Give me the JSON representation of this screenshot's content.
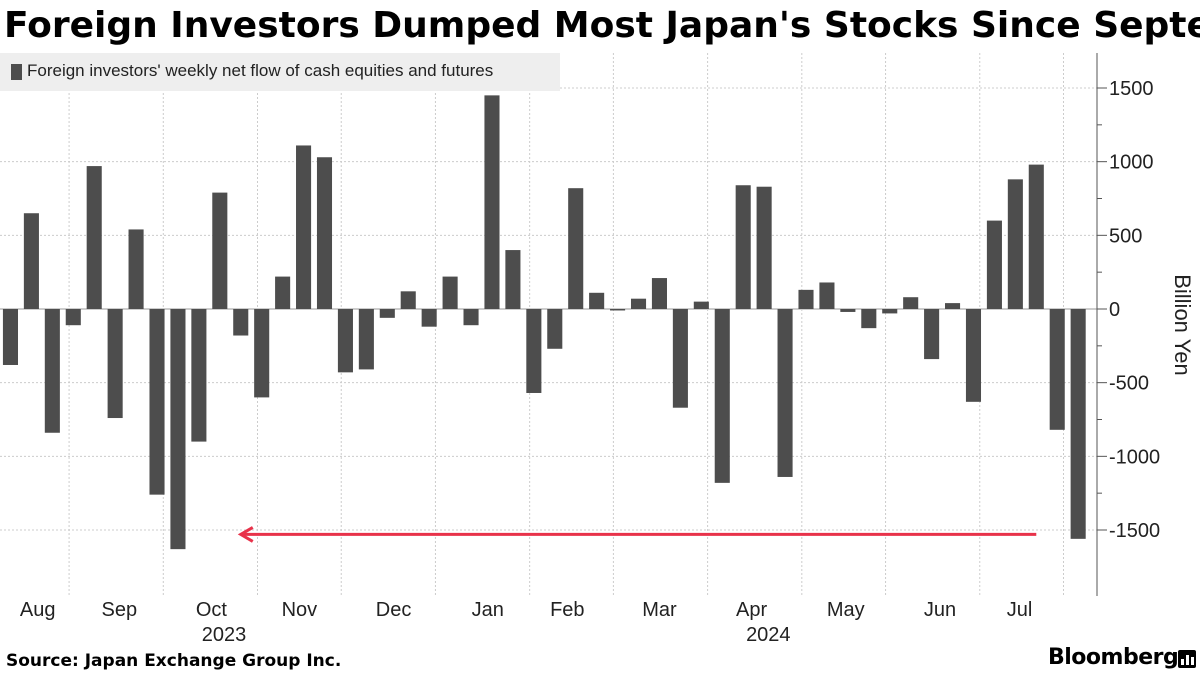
{
  "title": "Foreign Investors Dumped Most Japan's Stocks Since September",
  "source": "Source: Japan Exchange Group Inc.",
  "brand": "Bloomberg",
  "colors": {
    "bar": "#4d4d4d",
    "grid": "#cccccc",
    "arrow": "#e8324a",
    "legend_bg": "#eeeeee"
  },
  "chart_data": {
    "type": "bar",
    "title": "Foreign Investors Dumped Most Japan's Stocks Since September",
    "legend": "Foreign investors' weekly net flow of cash equities and futures",
    "ylabel": "Billion Yen",
    "ylim": [
      -1750,
      1750
    ],
    "yticks": [
      1500,
      1000,
      500,
      0,
      -500,
      -1000,
      -1500
    ],
    "ytick_labels": [
      "1500",
      "1000",
      "500",
      "0",
      "-500",
      "-1000",
      "-1500"
    ],
    "month_labels": [
      "Aug",
      "Sep",
      "Oct",
      "Nov",
      "Dec",
      "Jan",
      "Feb",
      "Mar",
      "Apr",
      "May",
      "Jun",
      "Jul"
    ],
    "month_label_weeks": [
      1.3,
      5.2,
      9.6,
      13.8,
      18.3,
      22.8,
      26.6,
      31.0,
      35.4,
      39.9,
      44.4,
      48.2
    ],
    "month_boundary_weeks": [
      2.8,
      7.3,
      11.8,
      15.8,
      20.3,
      24.8,
      28.8,
      33.3,
      37.8,
      41.8,
      46.3,
      50.3
    ],
    "year_labels": [
      {
        "label": "2023",
        "week": 10.2
      },
      {
        "label": "2024",
        "week": 36.2
      }
    ],
    "values": [
      -380,
      650,
      -840,
      -110,
      970,
      -740,
      540,
      -1260,
      -1630,
      -900,
      790,
      -180,
      -600,
      220,
      1110,
      1030,
      -430,
      -410,
      -60,
      120,
      -120,
      220,
      -110,
      1450,
      400,
      -570,
      -270,
      820,
      110,
      -10,
      70,
      210,
      -670,
      50,
      -1180,
      840,
      830,
      -1140,
      130,
      180,
      -20,
      -130,
      -30,
      80,
      -340,
      40,
      -630,
      600,
      880,
      980,
      -820,
      -1560
    ],
    "annotation": {
      "type": "arrow",
      "from_week": 49.0,
      "to_week": 11.0,
      "y": -1530
    }
  }
}
